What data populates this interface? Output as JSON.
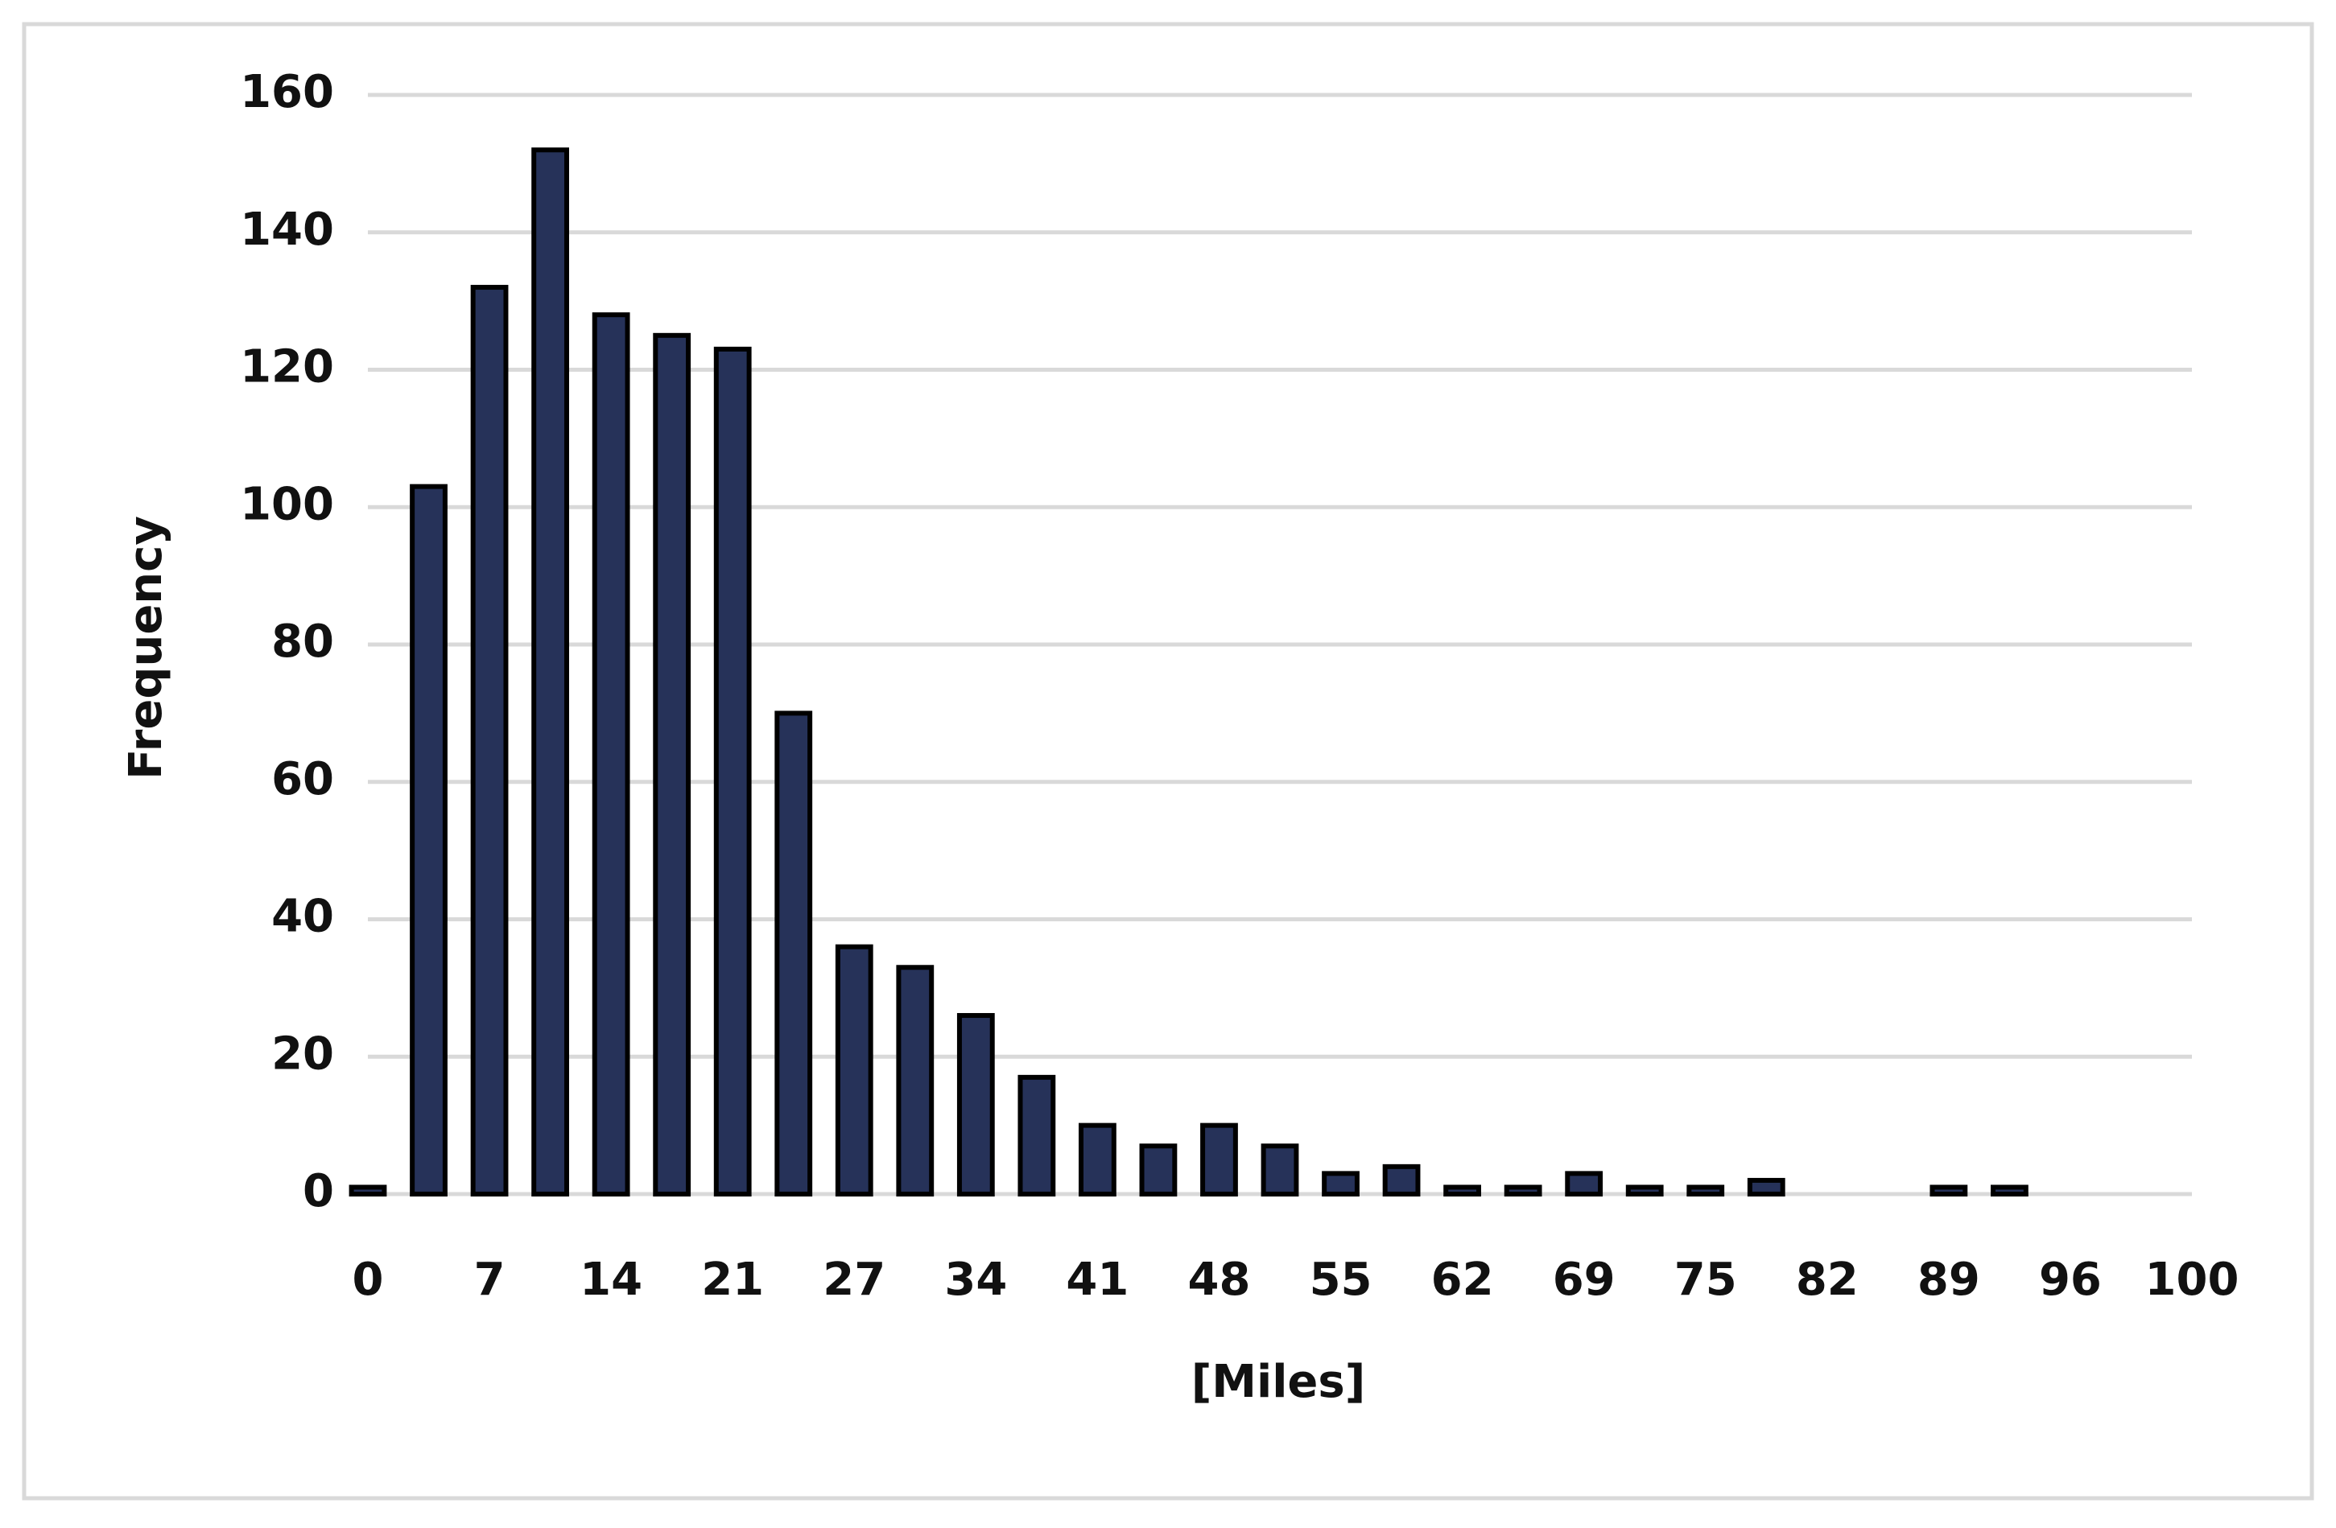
{
  "chart_data": {
    "type": "bar",
    "x_label": "[Miles]",
    "y_label": "Frequency",
    "categories": [
      "0",
      null,
      "7",
      null,
      "14",
      null,
      "21",
      null,
      "27",
      null,
      "34",
      null,
      "41",
      null,
      "48",
      null,
      "55",
      null,
      "62",
      null,
      "69",
      null,
      "75",
      null,
      "82",
      null,
      "89",
      null,
      "96",
      null,
      "100"
    ],
    "values": [
      1,
      103,
      132,
      152,
      128,
      125,
      123,
      70,
      36,
      33,
      26,
      17,
      10,
      7,
      10,
      7,
      3,
      4,
      1,
      1,
      3,
      1,
      1,
      2,
      0,
      0,
      1,
      1,
      0,
      0,
      0
    ],
    "color": "#263259",
    "ylim": [
      0,
      160
    ],
    "yticks": [
      0,
      20,
      40,
      60,
      80,
      100,
      120,
      140,
      160
    ],
    "grid": true
  }
}
